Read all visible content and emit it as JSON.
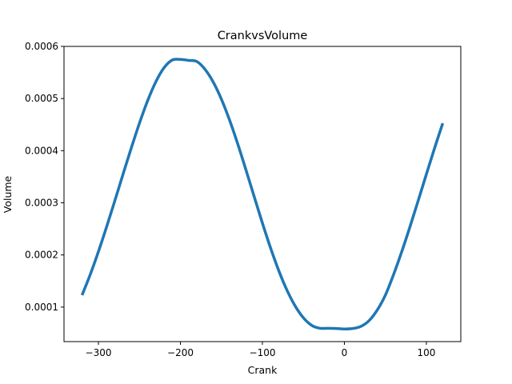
{
  "chart_data": {
    "type": "line",
    "title": "CrankvsVolume",
    "xlabel": "Crank",
    "ylabel": "Volume",
    "xlim": [
      -342,
      142
    ],
    "ylim": [
      3.38e-05,
      0.0006
    ],
    "x_ticks": [
      -300,
      -200,
      -100,
      0,
      100
    ],
    "x_tick_labels": [
      "−300",
      "−200",
      "−100",
      "0",
      "100"
    ],
    "y_ticks": [
      0.0001,
      0.0002,
      0.0003,
      0.0004,
      0.0005,
      0.0006
    ],
    "y_tick_labels": [
      "0.0001",
      "0.0002",
      "0.0003",
      "0.0004",
      "0.0005",
      "0.0006"
    ],
    "grid": false,
    "legend": "none",
    "series": [
      {
        "color": "#1f77b4",
        "x": [
          -320,
          -310,
          -300,
          -290,
          -280,
          -270,
          -260,
          -250,
          -240,
          -230,
          -220,
          -210,
          -200,
          -190,
          -180,
          -170,
          -160,
          -150,
          -140,
          -130,
          -120,
          -110,
          -100,
          -90,
          -80,
          -70,
          -60,
          -50,
          -40,
          -30,
          -20,
          -10,
          0,
          10,
          20,
          30,
          40,
          50,
          60,
          70,
          80,
          90,
          100,
          110,
          120
        ],
        "y": [
          0.0001229,
          0.0001624,
          0.0002065,
          0.0002541,
          0.000304,
          0.0003548,
          0.0004048,
          0.0004526,
          0.0004958,
          0.0005321,
          0.000559,
          0.0005738,
          0.000575,
          0.0005732,
          0.000571,
          0.000556,
          0.0005317,
          0.0004987,
          0.0004584,
          0.0004125,
          0.0003629,
          0.0003118,
          0.0002612,
          0.0002132,
          0.0001697,
          0.0001323,
          0.000102,
          7.95e-05,
          6.51e-05,
          5.94e-05,
          5.94e-05,
          5.9e-05,
          5.8e-05,
          5.89e-05,
          6.29e-05,
          7.38e-05,
          9.41e-05,
          0.0001229,
          0.0001624,
          0.0002065,
          0.0002541,
          0.000304,
          0.0003548,
          0.0004048,
          0.0004526
        ]
      }
    ]
  }
}
